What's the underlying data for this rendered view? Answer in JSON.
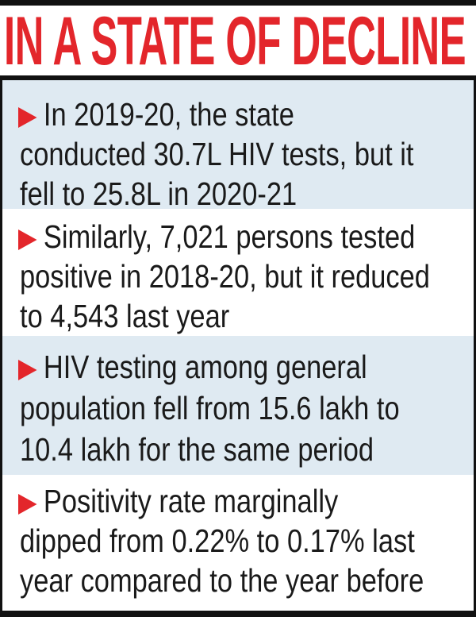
{
  "title": "IN A STATE OF DECLINE",
  "colors": {
    "accent": "#e3262b",
    "panel_blue": "#dfeaf2",
    "border": "#111111"
  },
  "bullet_icon": "red-arrowhead-icon",
  "items": [
    {
      "lines": [
        "In 2019-20, the state",
        "conducted 30.7L HIV tests, but it",
        "fell to 25.8L in 2020-21"
      ]
    },
    {
      "lines": [
        "Similarly, 7,021 persons tested",
        "positive in 2018-20, but it reduced",
        "to 4,543 last year"
      ]
    },
    {
      "lines": [
        "HIV testing among general",
        "population fell from 15.6 lakh to",
        "10.4 lakh for the same period"
      ]
    },
    {
      "lines": [
        "Positivity rate marginally",
        "dipped from 0.22% to 0.17% last",
        "year compared to the year before"
      ]
    }
  ]
}
